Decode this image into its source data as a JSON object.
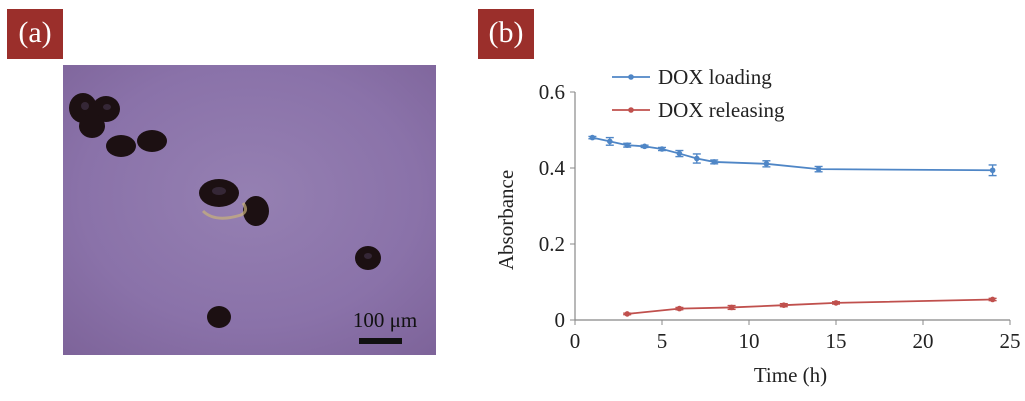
{
  "panel_a": {
    "tag": "(a)",
    "scale_bar_label": "100 μm",
    "colors": {
      "background": "#8a72a9",
      "beads": "#1c1012"
    }
  },
  "panel_b": {
    "tag": "(b)"
  },
  "chart_data": {
    "type": "line",
    "title": "",
    "xlabel": "Time (h)",
    "ylabel": "Absorbance",
    "xlim": [
      0,
      25
    ],
    "ylim": [
      0,
      0.6
    ],
    "x_ticks": [
      "0",
      "5",
      "10",
      "15",
      "20",
      "25"
    ],
    "y_ticks": [
      "0",
      "0.2",
      "0.4",
      "0.6"
    ],
    "grid": false,
    "legend_position": "top",
    "series": [
      {
        "name": "DOX loading",
        "color": "#4f86c6",
        "x": [
          1,
          2,
          3,
          4,
          5,
          6,
          7,
          8,
          11,
          14,
          24
        ],
        "y": [
          0.48,
          0.47,
          0.46,
          0.457,
          0.45,
          0.438,
          0.425,
          0.416,
          0.411,
          0.397,
          0.394
        ],
        "error": [
          0.003,
          0.01,
          0.005,
          0.003,
          0.004,
          0.008,
          0.012,
          0.005,
          0.008,
          0.007,
          0.014
        ]
      },
      {
        "name": "DOX releasing",
        "color": "#c0504d",
        "x": [
          3,
          6,
          9,
          12,
          15,
          24
        ],
        "y": [
          0.016,
          0.03,
          0.033,
          0.039,
          0.045,
          0.054
        ],
        "error": [
          0.002,
          0.003,
          0.005,
          0.004,
          0.003,
          0.003
        ]
      }
    ]
  }
}
